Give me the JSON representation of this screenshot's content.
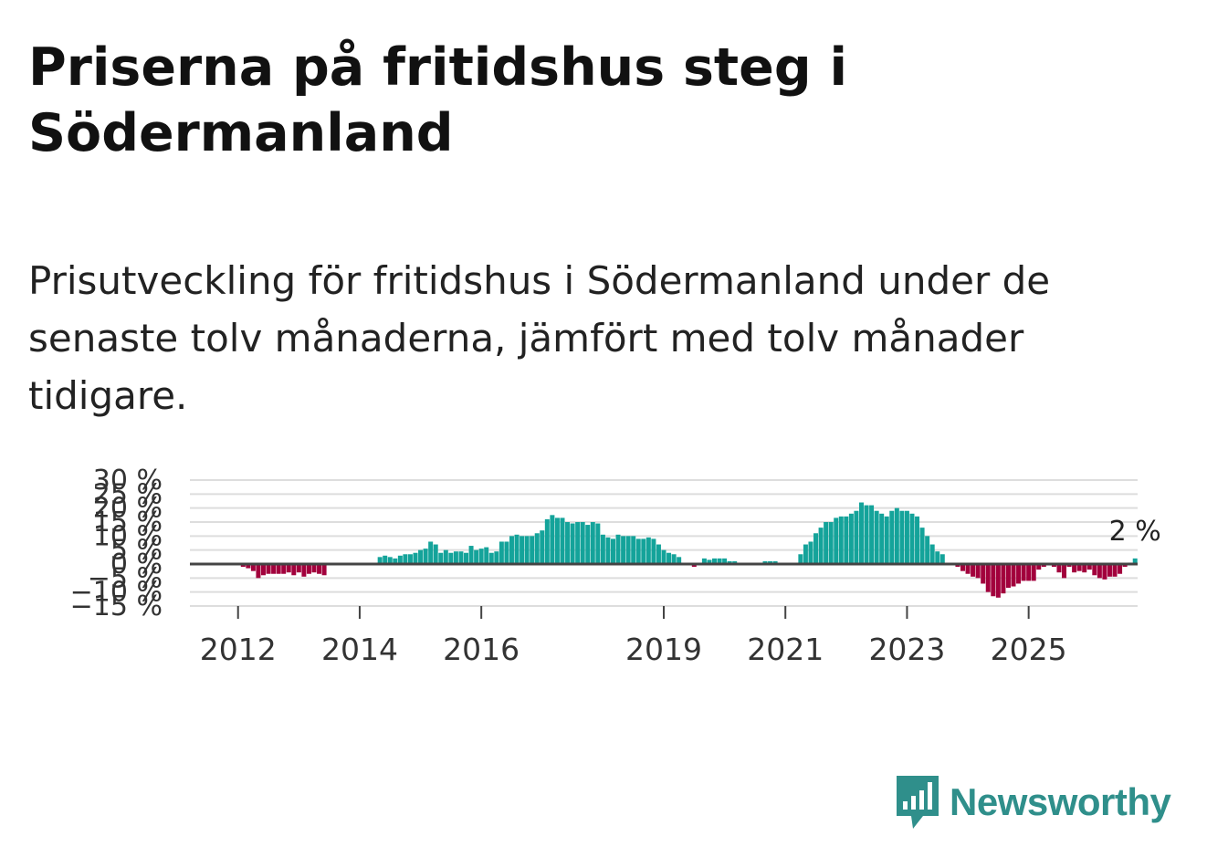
{
  "title": "Priserna på fritidshus steg i Södermanland",
  "subtitle": "Prisutveckling för fritidshus i Södermanland under de senaste tolv månaderna, jämfört med tolv månader tidigare.",
  "brand": {
    "name": "Newsworthy",
    "logo_icon": "bar-chart-speech-bubble-icon",
    "color": "#2f8f8b"
  },
  "colors": {
    "positive": "#14a39a",
    "negative": "#a2003c",
    "zero_line": "#444444",
    "grid": "#dddddd"
  },
  "chart_data": {
    "type": "bar",
    "title": "Priserna på fritidshus steg i Södermanland",
    "xlabel": "",
    "ylabel": "",
    "ylim": [
      -15,
      30
    ],
    "y_ticks": [
      30,
      25,
      20,
      15,
      10,
      5,
      0,
      -5,
      -10,
      -15
    ],
    "y_tick_labels": [
      "30 %",
      "25 %",
      "20 %",
      "15 %",
      "10 %",
      "5 %",
      "0 %",
      "−5 %",
      "−10 %",
      "−15 %"
    ],
    "x_tick_labels": [
      "2012",
      "2014",
      "2016",
      "2019",
      "2021",
      "2023",
      "2025"
    ],
    "x_tick_index": [
      9,
      33,
      57,
      93,
      117,
      141,
      165
    ],
    "end_label": "2 %",
    "series": [
      {
        "name": "Prisutveckling",
        "values": [
          0,
          0,
          0,
          0,
          0,
          0,
          0,
          0,
          0,
          0,
          -1,
          -1.5,
          -2.5,
          -5,
          -4,
          -3.5,
          -3.5,
          -3.5,
          -3.5,
          -3,
          -4,
          -3,
          -4.5,
          -3.5,
          -3,
          -3.5,
          -4,
          0,
          0,
          0,
          0,
          0,
          0,
          0,
          0,
          0,
          0,
          2.5,
          3,
          2.5,
          2,
          3,
          3.5,
          3.5,
          4,
          5,
          5.5,
          8,
          7,
          4,
          5,
          4,
          4.5,
          4.5,
          4,
          6.5,
          5,
          5.5,
          6,
          4,
          4.5,
          8,
          8,
          10,
          10.5,
          10,
          10,
          10,
          11,
          12,
          16,
          17.5,
          16.5,
          16.5,
          15,
          14.5,
          15,
          15,
          14,
          15,
          14.5,
          10.5,
          9.5,
          9,
          10.5,
          10,
          10,
          10,
          9,
          9,
          9.5,
          9,
          7,
          5,
          4,
          3.5,
          2.5,
          0,
          0,
          -1,
          0,
          2,
          1.5,
          2,
          2,
          2,
          1,
          1,
          0,
          0,
          0,
          0,
          0,
          1,
          1,
          1,
          0,
          0,
          0,
          0,
          3.5,
          7,
          8,
          11,
          13,
          15,
          15,
          16.5,
          17,
          17,
          18,
          19,
          22,
          21,
          21,
          19,
          18,
          17,
          19,
          20,
          19,
          19,
          18,
          17,
          13,
          10,
          7,
          4.5,
          3.5,
          0,
          0,
          -1,
          -2.5,
          -3.5,
          -4.5,
          -5,
          -7,
          -10,
          -11.5,
          -12,
          -10.5,
          -8.5,
          -8,
          -7,
          -6,
          -6,
          -6,
          -2,
          -1,
          -0.5,
          -1,
          -3,
          -5,
          -1,
          -3,
          -2.5,
          -3,
          -2,
          -4,
          -5,
          -5.5,
          -4.5,
          -4.5,
          -3.5,
          -1,
          0.5,
          2
        ]
      }
    ]
  }
}
